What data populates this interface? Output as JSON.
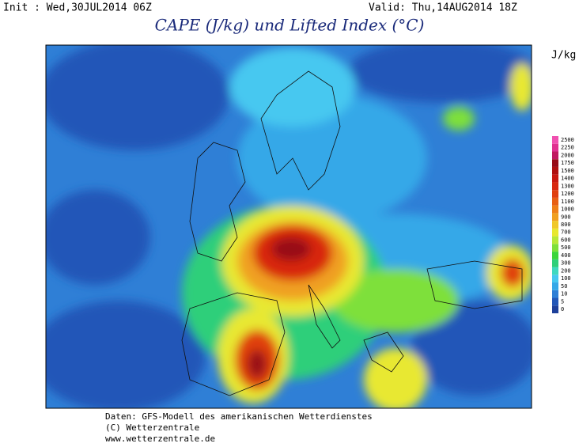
{
  "header": {
    "init": "Init : Wed,30JUL2014 06Z",
    "valid": "Valid: Thu,14AUG2014 18Z",
    "title": "CAPE (J/kg) und Lifted Index (°C)"
  },
  "colorbar": {
    "unit": "J/kg",
    "levels": [
      0,
      5,
      10,
      50,
      100,
      200,
      300,
      400,
      500,
      600,
      700,
      800,
      900,
      1000,
      1100,
      1200,
      1300,
      1400,
      1500,
      1750,
      2000,
      2250,
      2500
    ],
    "colors": [
      "#1d3f9a",
      "#2257b8",
      "#2f7fd6",
      "#35a8e8",
      "#46c8f0",
      "#3fd8c0",
      "#2fcf7a",
      "#3cd63a",
      "#7ee03a",
      "#b8e838",
      "#e8e830",
      "#f0c828",
      "#f0a020",
      "#ee8018",
      "#e86014",
      "#e04010",
      "#d82810",
      "#c81810",
      "#b01010",
      "#980c18",
      "#c01860",
      "#e03090",
      "#f050b0"
    ]
  },
  "footer": {
    "lines": [
      "Daten: GFS-Modell des amerikanischen Wetterdienstes",
      "(C) Wetterzentrale",
      "www.wetterzentrale.de"
    ]
  }
}
